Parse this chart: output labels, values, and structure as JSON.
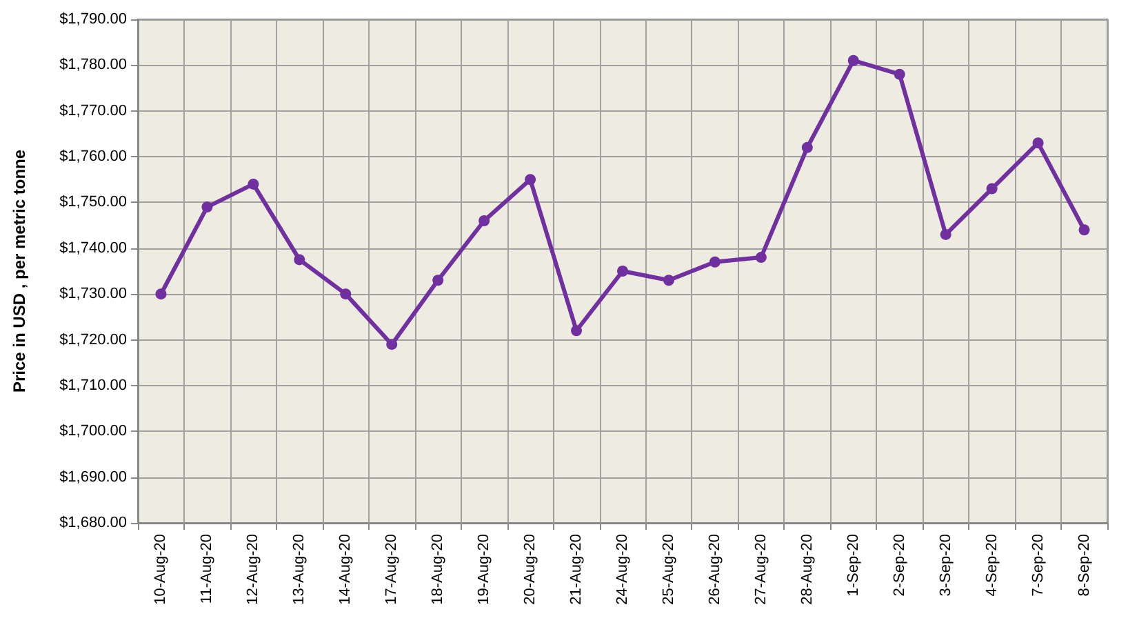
{
  "chart_data": {
    "type": "line",
    "ylabel": "Price in USD , per metric tonne",
    "categories": [
      "10-Aug-20",
      "11-Aug-20",
      "12-Aug-20",
      "13-Aug-20",
      "14-Aug-20",
      "17-Aug-20",
      "18-Aug-20",
      "19-Aug-20",
      "20-Aug-20",
      "21-Aug-20",
      "24-Aug-20",
      "25-Aug-20",
      "26-Aug-20",
      "27-Aug-20",
      "28-Aug-20",
      "1-Sep-20",
      "2-Sep-20",
      "3-Sep-20",
      "4-Sep-20",
      "7-Sep-20",
      "8-Sep-20"
    ],
    "series": [
      {
        "color": "#7030a0",
        "values": [
          1730,
          1749,
          1754,
          1737.5,
          1730,
          1719,
          1733,
          1746,
          1755,
          1722,
          1735,
          1733,
          1737,
          1738,
          1762,
          1781,
          1778,
          1743,
          1753,
          1763,
          1744
        ]
      }
    ],
    "ylim": [
      1680,
      1790
    ],
    "yticks": [
      {
        "value": 1680,
        "label": "$1,680.00"
      },
      {
        "value": 1690,
        "label": "$1,690.00"
      },
      {
        "value": 1700,
        "label": "$1,700.00"
      },
      {
        "value": 1710,
        "label": "$1,710.00"
      },
      {
        "value": 1720,
        "label": "$1,720.00"
      },
      {
        "value": 1730,
        "label": "$1,730.00"
      },
      {
        "value": 1740,
        "label": "$1,740.00"
      },
      {
        "value": 1750,
        "label": "$1,750.00"
      },
      {
        "value": 1760,
        "label": "$1,760.00"
      },
      {
        "value": 1770,
        "label": "$1,770.00"
      },
      {
        "value": 1780,
        "label": "$1,780.00"
      },
      {
        "value": 1790,
        "label": "$1,790.00"
      }
    ],
    "grid": true,
    "marker": "circle",
    "line_style": "solid"
  }
}
